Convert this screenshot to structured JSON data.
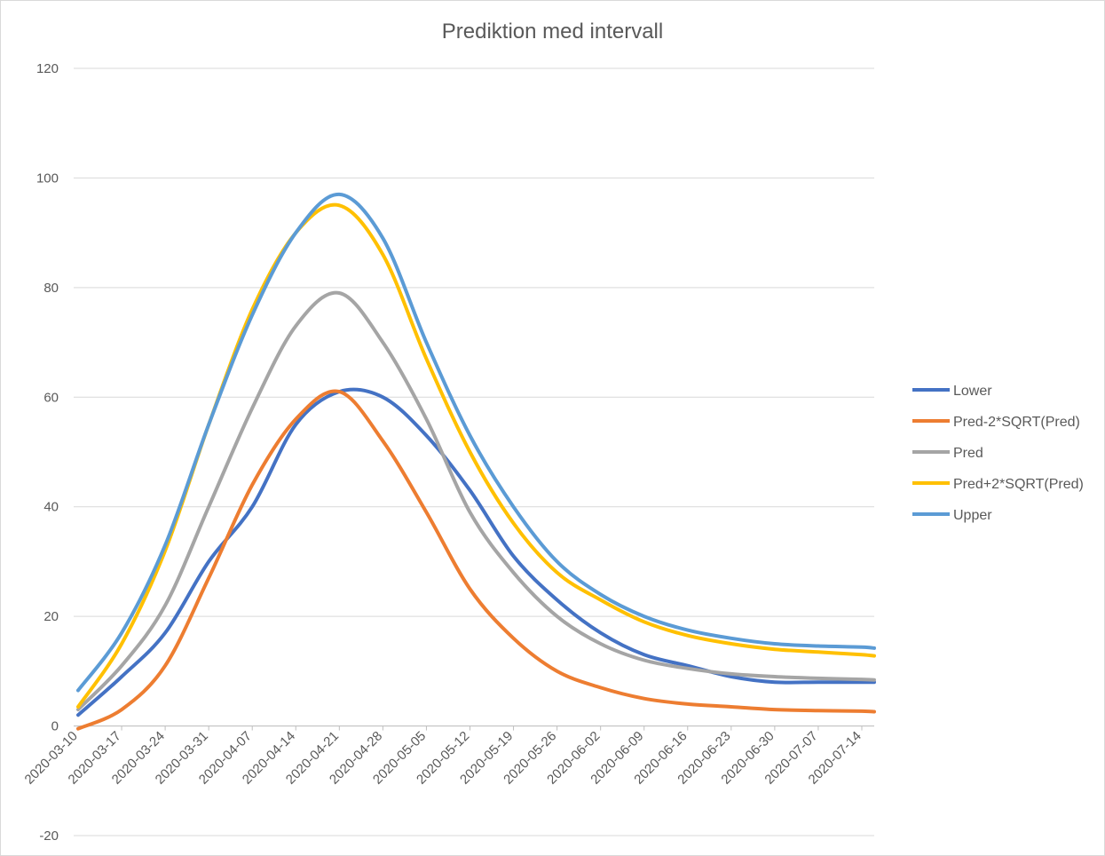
{
  "chart_data": {
    "type": "line",
    "title": "Prediktion med intervall",
    "xlabel": "",
    "ylabel": "",
    "ylim": [
      -20,
      120
    ],
    "yticks": [
      -20,
      0,
      20,
      40,
      60,
      80,
      100,
      120
    ],
    "grid": true,
    "legend_position": "right",
    "x_tick_labels": [
      "2020-03-10",
      "2020-03-17",
      "2020-03-24",
      "2020-03-31",
      "2020-04-07",
      "2020-04-14",
      "2020-04-21",
      "2020-04-28",
      "2020-05-05",
      "2020-05-12",
      "2020-05-19",
      "2020-05-26",
      "2020-06-02",
      "2020-06-09",
      "2020-06-16",
      "2020-06-23",
      "2020-06-30",
      "2020-07-07",
      "2020-07-14"
    ],
    "x": [
      "2020-03-10",
      "2020-03-17",
      "2020-03-24",
      "2020-03-31",
      "2020-04-07",
      "2020-04-14",
      "2020-04-21",
      "2020-04-28",
      "2020-05-05",
      "2020-05-12",
      "2020-05-19",
      "2020-05-26",
      "2020-06-02",
      "2020-06-09",
      "2020-06-16",
      "2020-06-23",
      "2020-06-30",
      "2020-07-07",
      "2020-07-14",
      "2020-07-16"
    ],
    "series": [
      {
        "name": "Lower",
        "color": "#4472c4",
        "values": [
          2,
          9,
          17,
          30,
          40,
          55,
          61,
          60,
          53,
          43,
          31,
          23,
          17,
          13,
          11,
          9,
          8,
          8,
          8,
          8
        ]
      },
      {
        "name": "Pred-2*SQRT(Pred)",
        "color": "#ed7d31",
        "values": [
          -0.5,
          3,
          11,
          27,
          44,
          56,
          61,
          52,
          39,
          25,
          16,
          10,
          7,
          5,
          4,
          3.5,
          3,
          2.8,
          2.7,
          2.6
        ]
      },
      {
        "name": "Pred",
        "color": "#a5a5a5",
        "values": [
          3,
          11,
          22,
          40,
          58,
          73,
          79,
          70,
          56,
          39,
          28,
          20,
          15,
          12,
          10.5,
          9.5,
          9,
          8.7,
          8.5,
          8.4
        ]
      },
      {
        "name": "Pred+2*SQRT(Pred)",
        "color": "#ffc000",
        "values": [
          3.5,
          15,
          32,
          55,
          76,
          90,
          95,
          86,
          67,
          50,
          37,
          28,
          23,
          19,
          16.5,
          15,
          14,
          13.5,
          13,
          12.8
        ]
      },
      {
        "name": "Upper",
        "color": "#5b9bd5",
        "values": [
          6.5,
          17,
          33,
          55,
          75,
          90,
          97,
          89,
          70,
          53,
          40,
          30,
          24,
          20,
          17.5,
          16,
          15,
          14.6,
          14.4,
          14.2
        ]
      }
    ]
  }
}
